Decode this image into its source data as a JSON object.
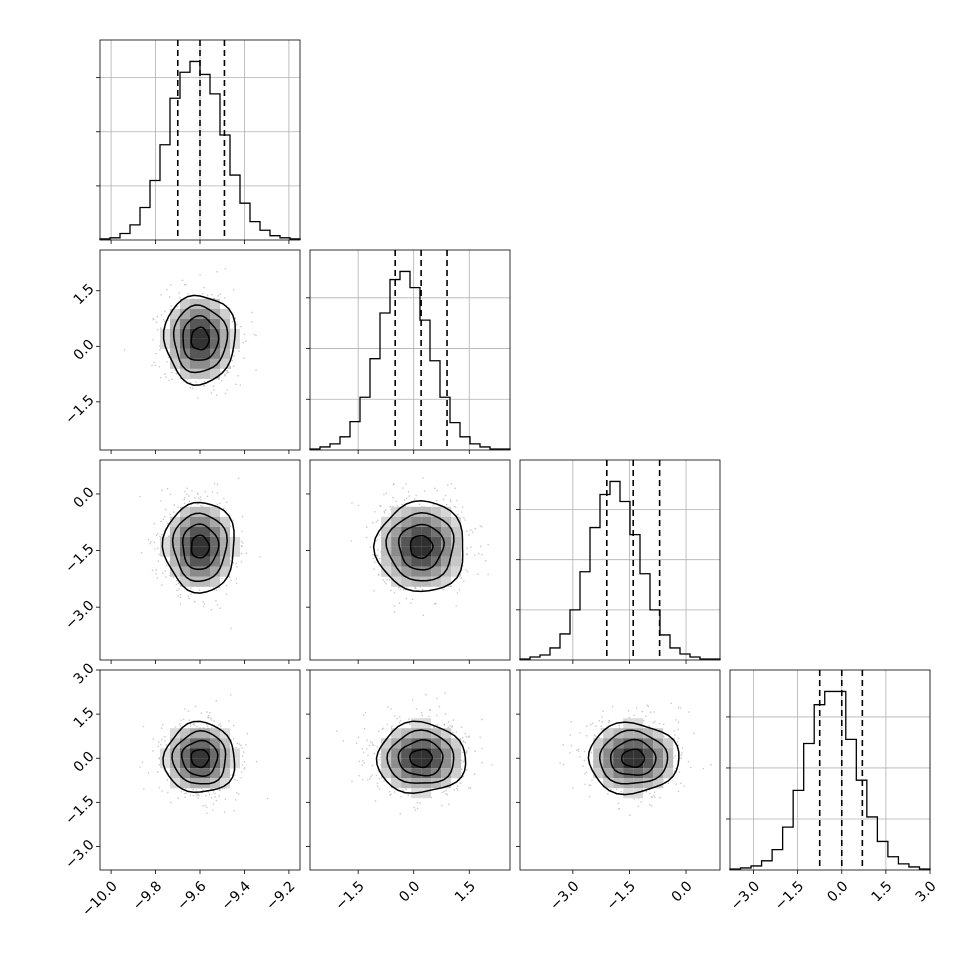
{
  "chart_data": {
    "type": "corner",
    "parameter_count": 4,
    "grid": true,
    "colors": {
      "line": "#000000",
      "grid": "#b0b0b0",
      "scatter": "#9e9e9e"
    },
    "parameters": [
      {
        "range": [
          -10.05,
          -9.15
        ],
        "x_ticks": [
          -10.0,
          -9.8,
          -9.6,
          -9.4,
          -9.2
        ],
        "x_tick_labels": [
          "−10.0",
          "−9.8",
          "−9.6",
          "−9.4",
          "−9.2"
        ],
        "quantiles": [
          -9.7,
          -9.6,
          -9.49
        ],
        "hist_counts": [
          1,
          2,
          6,
          14,
          30,
          55,
          88,
          131,
          155,
          165,
          153,
          135,
          97,
          60,
          34,
          17,
          9,
          4,
          2,
          1
        ],
        "hist_gridlines": [
          50,
          100,
          150
        ]
      },
      {
        "range": [
          -2.8,
          2.6
        ],
        "ticks": [
          -1.5,
          0.0,
          1.5
        ],
        "tick_labels": [
          "−1.5",
          "0.0",
          "1.5"
        ],
        "quantiles": [
          -0.5,
          0.2,
          0.9
        ],
        "hist_counts": [
          1,
          3,
          6,
          13,
          28,
          52,
          90,
          135,
          168,
          176,
          160,
          128,
          88,
          52,
          27,
          13,
          6,
          3,
          1,
          1
        ],
        "hist_gridlines": [
          50,
          100,
          150
        ]
      },
      {
        "range": [
          -4.4,
          0.9
        ],
        "ticks": [
          -3.0,
          -1.5,
          0.0
        ],
        "tick_labels": [
          "−3.0",
          "−1.5",
          "0.0"
        ],
        "quantiles": [
          -2.1,
          -1.4,
          -0.7
        ],
        "hist_counts": [
          1,
          3,
          5,
          12,
          26,
          50,
          88,
          132,
          165,
          178,
          158,
          125,
          86,
          50,
          25,
          12,
          6,
          3,
          1,
          1
        ],
        "hist_gridlines": [
          50,
          100,
          150
        ]
      },
      {
        "range": [
          -3.8,
          3.0
        ],
        "ticks": [
          -3.0,
          -1.5,
          0.0,
          1.5,
          3.0
        ],
        "tick_labels": [
          "−3.0",
          "−1.5",
          "0.0",
          "1.5",
          "3.0"
        ],
        "quantiles": [
          -0.75,
          0.0,
          0.7
        ],
        "hist_counts": [
          1,
          2,
          4,
          9,
          20,
          42,
          78,
          124,
          162,
          175,
          175,
          128,
          88,
          52,
          28,
          13,
          6,
          3,
          1
        ],
        "hist_gridlines": [
          50,
          100,
          150
        ]
      }
    ],
    "pairs": [
      {
        "row": 1,
        "col": 0,
        "x_center": -9.6,
        "y_center": 0.2,
        "x_sigma": 0.08,
        "y_sigma": 0.6,
        "contour_levels_sigma": [
          0.5,
          1.0,
          1.5,
          2.0
        ]
      },
      {
        "row": 2,
        "col": 0,
        "x_center": -9.6,
        "y_center": -1.4,
        "x_sigma": 0.08,
        "y_sigma": 0.6,
        "contour_levels_sigma": [
          0.5,
          1.0,
          1.5,
          2.0
        ]
      },
      {
        "row": 2,
        "col": 1,
        "x_center": 0.2,
        "y_center": -1.4,
        "x_sigma": 0.6,
        "y_sigma": 0.6,
        "contour_levels_sigma": [
          0.5,
          1.0,
          1.5,
          2.0
        ]
      },
      {
        "row": 3,
        "col": 0,
        "x_center": -9.6,
        "y_center": 0.0,
        "x_sigma": 0.08,
        "y_sigma": 0.6,
        "contour_levels_sigma": [
          0.5,
          1.0,
          1.5,
          2.0
        ]
      },
      {
        "row": 3,
        "col": 1,
        "x_center": 0.2,
        "y_center": 0.0,
        "x_sigma": 0.6,
        "y_sigma": 0.6,
        "contour_levels_sigma": [
          0.5,
          1.0,
          1.5,
          2.0
        ]
      },
      {
        "row": 3,
        "col": 2,
        "x_center": -1.4,
        "y_center": 0.0,
        "x_sigma": 0.6,
        "y_sigma": 0.6,
        "contour_levels_sigma": [
          0.5,
          1.0,
          1.5,
          2.0
        ]
      }
    ]
  }
}
